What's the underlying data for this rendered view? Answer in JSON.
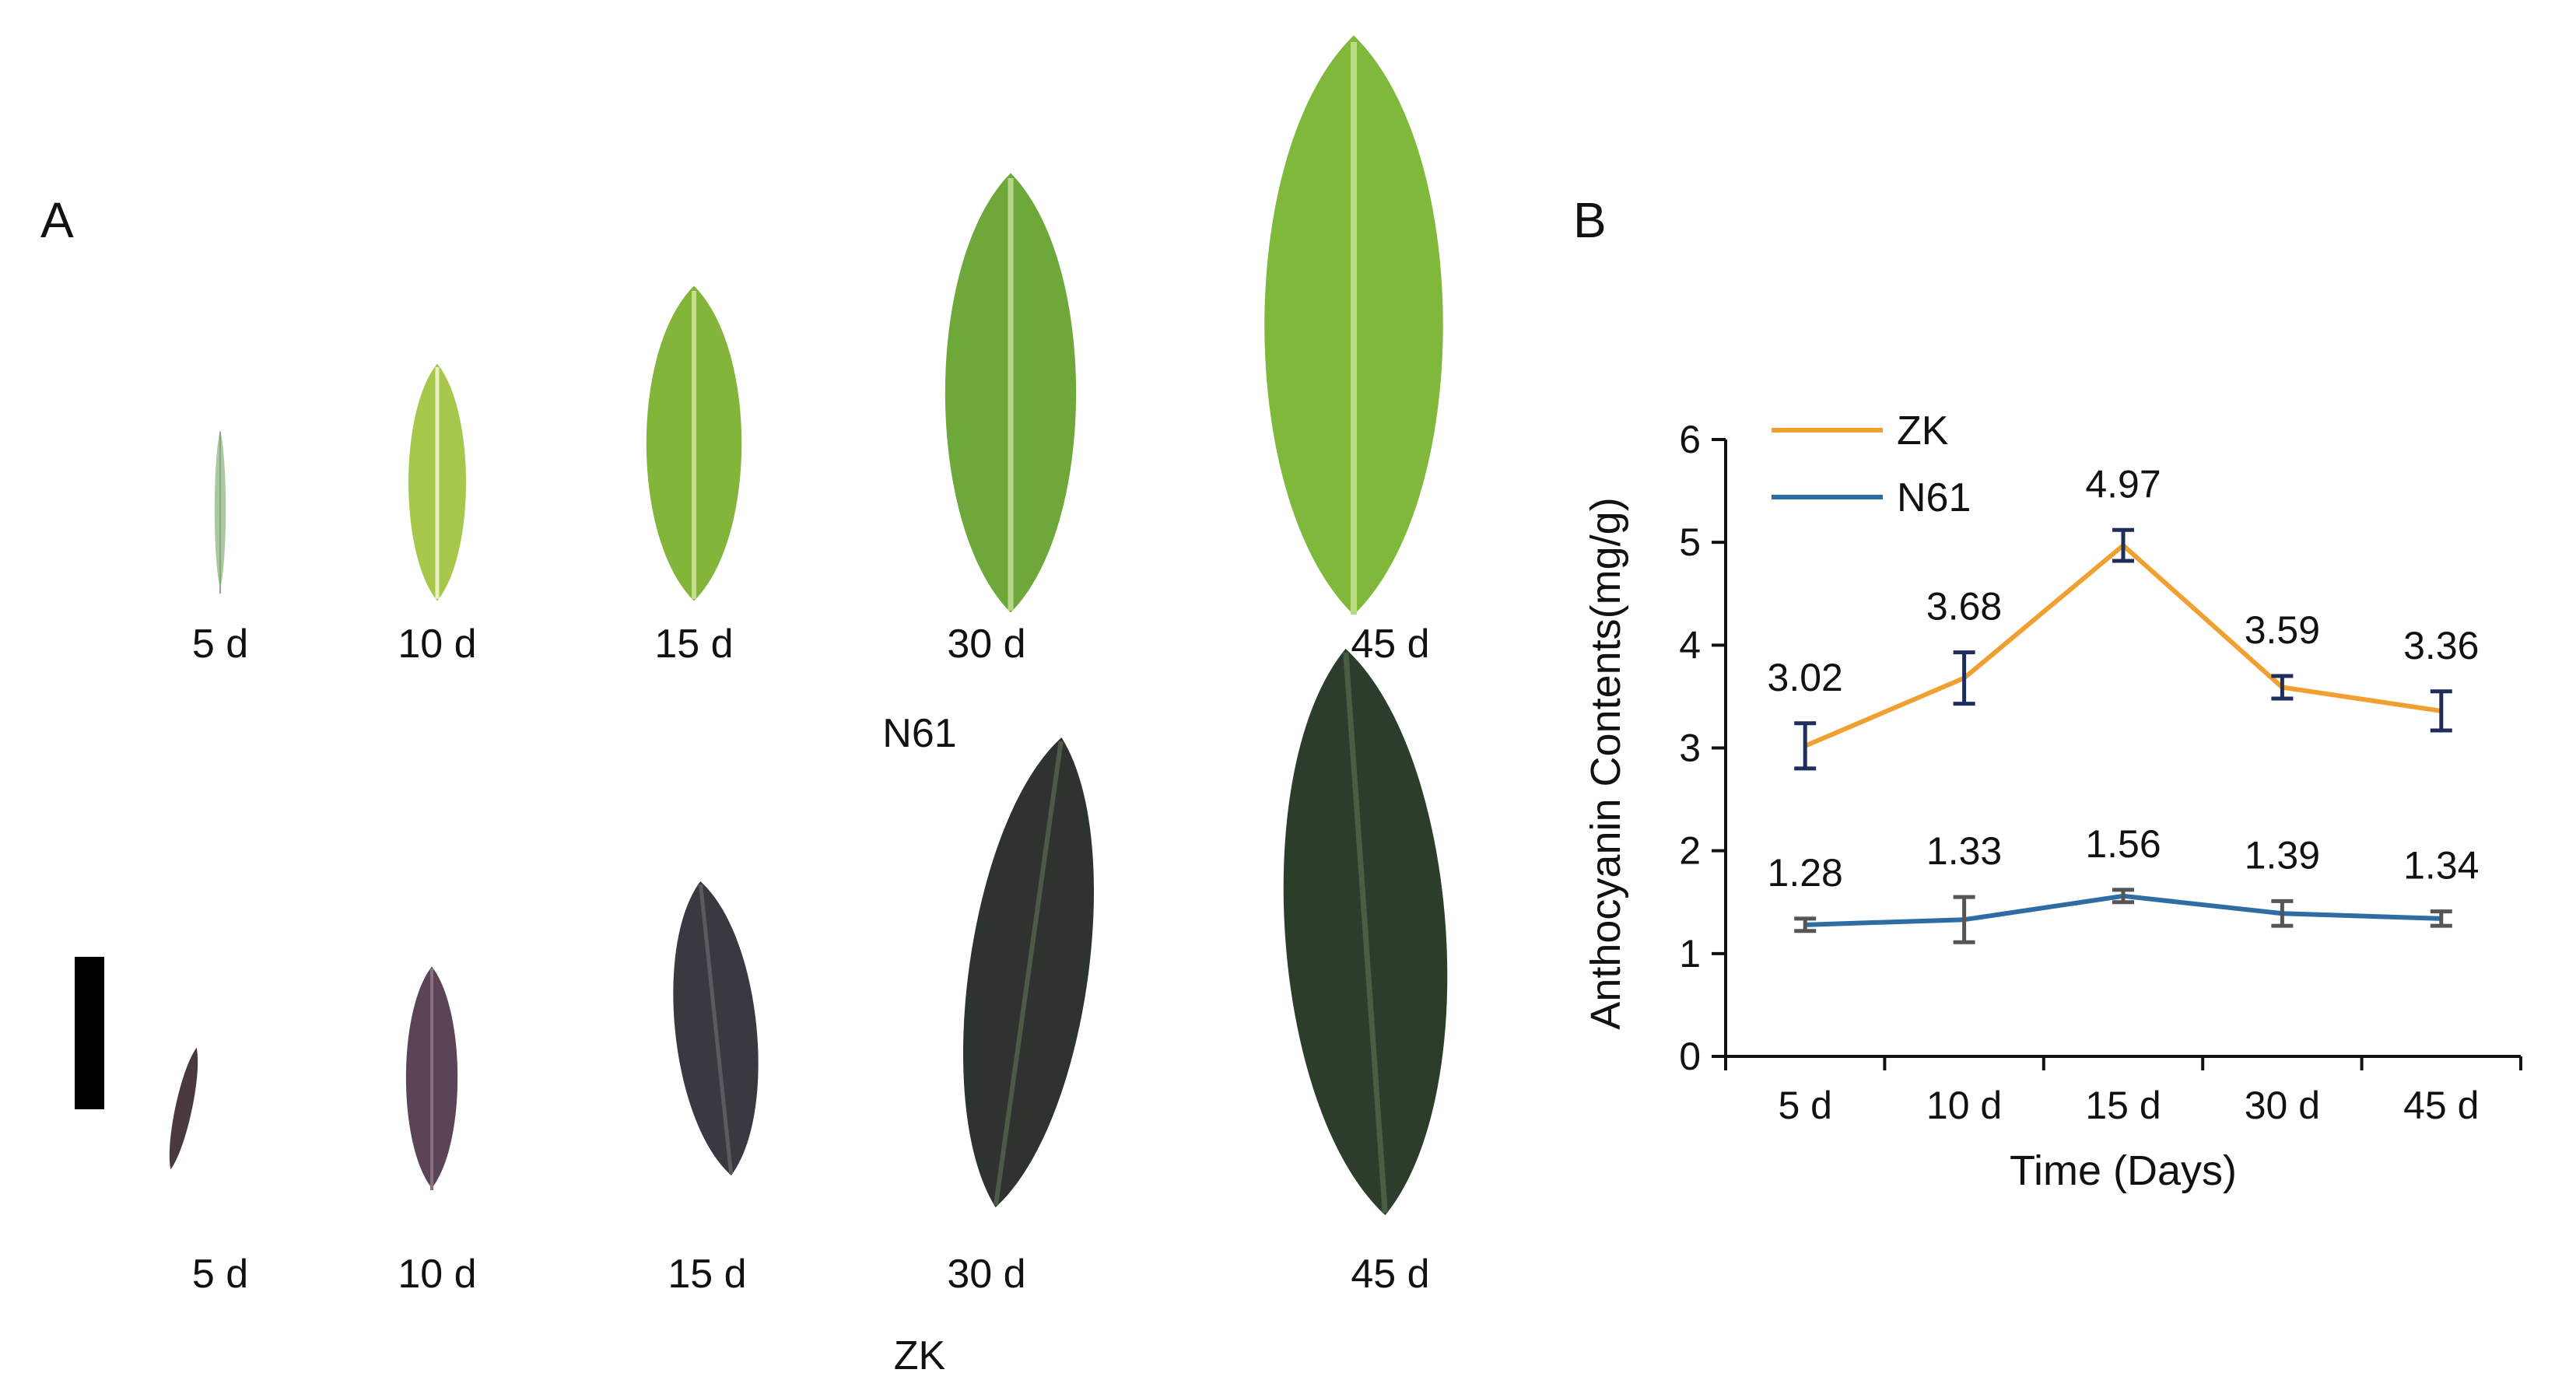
{
  "panel_a": {
    "letter": "A",
    "rows": [
      {
        "group_label": "N61",
        "leaf_color": "#7fb83a",
        "leaves": [
          {
            "label": "5 d",
            "icon": "leaf-icon"
          },
          {
            "label": "10 d",
            "icon": "leaf-icon"
          },
          {
            "label": "15 d",
            "icon": "leaf-icon"
          },
          {
            "label": "30 d",
            "icon": "leaf-icon"
          },
          {
            "label": "45 d",
            "icon": "leaf-icon"
          }
        ]
      },
      {
        "group_label": "ZK",
        "leaf_color": "#3a3a3e",
        "leaves": [
          {
            "label": "5 d",
            "icon": "leaf-icon"
          },
          {
            "label": "10 d",
            "icon": "leaf-icon"
          },
          {
            "label": "15 d",
            "icon": "leaf-icon"
          },
          {
            "label": "30 d",
            "icon": "leaf-icon"
          },
          {
            "label": "45 d",
            "icon": "leaf-icon"
          }
        ]
      }
    ],
    "scale_bar_icon": "scale-bar-icon"
  },
  "panel_b": {
    "letter": "B"
  },
  "chart_data": {
    "type": "line",
    "categories": [
      "5 d",
      "10 d",
      "15 d",
      "30 d",
      "45 d"
    ],
    "series": [
      {
        "name": "ZK",
        "color": "#f0a030",
        "errorbar_color": "#1f2d5a",
        "values": [
          3.02,
          3.68,
          4.97,
          3.59,
          3.36
        ],
        "errors": [
          0.22,
          0.25,
          0.15,
          0.11,
          0.19
        ],
        "data_labels": [
          "3.02",
          "3.68",
          "4.97",
          "3.59",
          "3.36"
        ]
      },
      {
        "name": "N61",
        "color": "#2e6da4",
        "errorbar_color": "#555555",
        "values": [
          1.28,
          1.33,
          1.56,
          1.39,
          1.34
        ],
        "errors": [
          0.06,
          0.22,
          0.06,
          0.12,
          0.07
        ],
        "data_labels": [
          "1.28",
          "1.33",
          "1.56",
          "1.39",
          "1.34"
        ]
      }
    ],
    "xlabel": "Time (Days)",
    "ylabel": "Anthocyanin Contents(mg/g)",
    "ylim": [
      0,
      6
    ],
    "yticks": [
      0,
      1,
      2,
      3,
      4,
      5,
      6
    ],
    "grid": false,
    "legend": "top-left"
  }
}
